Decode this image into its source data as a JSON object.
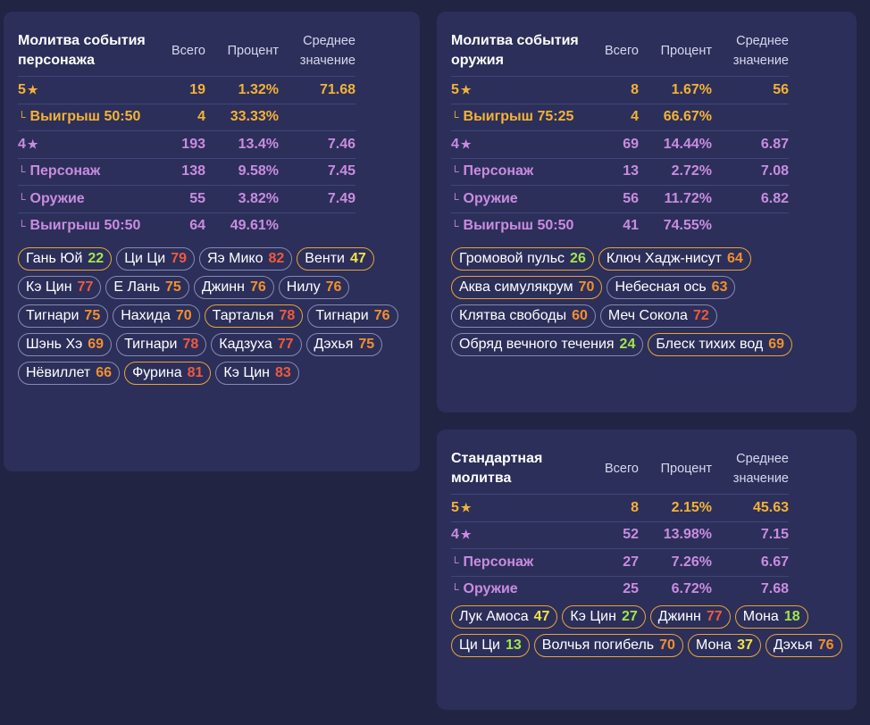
{
  "headers": {
    "total": "Всего",
    "percent": "Процент",
    "avg_line1": "Среднее",
    "avg_line2": "значение"
  },
  "character": {
    "title_line1": "Молитва события",
    "title_line2": "персонажа",
    "rows": [
      {
        "label": "5",
        "star": "★",
        "tier": "gold",
        "indent": false,
        "total": "19",
        "percent": "1.32%",
        "avg": "71.68"
      },
      {
        "label": "Выигрыш 50:50",
        "tier": "gold",
        "indent": true,
        "total": "4",
        "percent": "33.33%",
        "avg": ""
      },
      {
        "label": "4",
        "star": "★",
        "tier": "purple",
        "indent": false,
        "total": "193",
        "percent": "13.4%",
        "avg": "7.46"
      },
      {
        "label": "Персонаж",
        "tier": "purple",
        "indent": true,
        "total": "138",
        "percent": "9.58%",
        "avg": "7.45"
      },
      {
        "label": "Оружие",
        "tier": "purple",
        "indent": true,
        "total": "55",
        "percent": "3.82%",
        "avg": "7.49"
      },
      {
        "label": "Выигрыш 50:50",
        "tier": "purple",
        "indent": true,
        "total": "64",
        "percent": "49.61%",
        "avg": ""
      }
    ],
    "chips": [
      {
        "name": "Гань Юй",
        "count": "22",
        "color": "green",
        "highlight": true
      },
      {
        "name": "Ци Ци",
        "count": "79",
        "color": "red",
        "highlight": false
      },
      {
        "name": "Яэ Мико",
        "count": "82",
        "color": "red",
        "highlight": false
      },
      {
        "name": "Венти",
        "count": "47",
        "color": "yellow",
        "highlight": true
      },
      {
        "name": "Кэ Цин",
        "count": "77",
        "color": "red",
        "highlight": false
      },
      {
        "name": "Е Лань",
        "count": "75",
        "color": "orange",
        "highlight": false
      },
      {
        "name": "Джинн",
        "count": "76",
        "color": "orange",
        "highlight": false
      },
      {
        "name": "Нилу",
        "count": "76",
        "color": "orange",
        "highlight": false
      },
      {
        "name": "Тигнари",
        "count": "75",
        "color": "orange",
        "highlight": false
      },
      {
        "name": "Нахида",
        "count": "70",
        "color": "orange",
        "highlight": false
      },
      {
        "name": "Тарталья",
        "count": "78",
        "color": "red",
        "highlight": true
      },
      {
        "name": "Тигнари",
        "count": "76",
        "color": "orange",
        "highlight": false
      },
      {
        "name": "Шэнь Хэ",
        "count": "69",
        "color": "orange",
        "highlight": false
      },
      {
        "name": "Тигнари",
        "count": "78",
        "color": "red",
        "highlight": false
      },
      {
        "name": "Кадзуха",
        "count": "77",
        "color": "red",
        "highlight": false
      },
      {
        "name": "Дэхья",
        "count": "75",
        "color": "orange",
        "highlight": false
      },
      {
        "name": "Нёвиллет",
        "count": "66",
        "color": "orange",
        "highlight": false
      },
      {
        "name": "Фурина",
        "count": "81",
        "color": "red",
        "highlight": true
      },
      {
        "name": "Кэ Цин",
        "count": "83",
        "color": "red",
        "highlight": false
      }
    ]
  },
  "weapon": {
    "title_line1": "Молитва события",
    "title_line2": "оружия",
    "rows": [
      {
        "label": "5",
        "star": "★",
        "tier": "gold",
        "indent": false,
        "total": "8",
        "percent": "1.67%",
        "avg": "56"
      },
      {
        "label": "Выигрыш 75:25",
        "tier": "gold",
        "indent": true,
        "total": "4",
        "percent": "66.67%",
        "avg": ""
      },
      {
        "label": "4",
        "star": "★",
        "tier": "purple",
        "indent": false,
        "total": "69",
        "percent": "14.44%",
        "avg": "6.87"
      },
      {
        "label": "Персонаж",
        "tier": "purple",
        "indent": true,
        "total": "13",
        "percent": "2.72%",
        "avg": "7.08"
      },
      {
        "label": "Оружие",
        "tier": "purple",
        "indent": true,
        "total": "56",
        "percent": "11.72%",
        "avg": "6.82"
      },
      {
        "label": "Выигрыш 50:50",
        "tier": "purple",
        "indent": true,
        "total": "41",
        "percent": "74.55%",
        "avg": ""
      }
    ],
    "chips": [
      {
        "name": "Громовой пульс",
        "count": "26",
        "color": "green",
        "highlight": true
      },
      {
        "name": "Ключ Хадж-нисут",
        "count": "64",
        "color": "orange",
        "highlight": true
      },
      {
        "name": "Аква симулякрум",
        "count": "70",
        "color": "orange",
        "highlight": true
      },
      {
        "name": "Небесная ось",
        "count": "63",
        "color": "orange",
        "highlight": false
      },
      {
        "name": "Клятва свободы",
        "count": "60",
        "color": "orange",
        "highlight": false
      },
      {
        "name": "Меч Сокола",
        "count": "72",
        "color": "red",
        "highlight": false
      },
      {
        "name": "Обряд вечного течения",
        "count": "24",
        "color": "green",
        "highlight": false
      },
      {
        "name": "Блеск тихих вод",
        "count": "69",
        "color": "orange",
        "highlight": true
      }
    ]
  },
  "standard": {
    "title_line1": "Стандартная молитва",
    "title_line2": "",
    "rows": [
      {
        "label": "5",
        "star": "★",
        "tier": "gold",
        "indent": false,
        "total": "8",
        "percent": "2.15%",
        "avg": "45.63"
      },
      {
        "label": "4",
        "star": "★",
        "tier": "purple",
        "indent": false,
        "total": "52",
        "percent": "13.98%",
        "avg": "7.15"
      },
      {
        "label": "Персонаж",
        "tier": "purple",
        "indent": true,
        "total": "27",
        "percent": "7.26%",
        "avg": "6.67"
      },
      {
        "label": "Оружие",
        "tier": "purple",
        "indent": true,
        "total": "25",
        "percent": "6.72%",
        "avg": "7.68"
      }
    ],
    "chips": [
      {
        "name": "Лук Амоса",
        "count": "47",
        "color": "yellow",
        "highlight": true
      },
      {
        "name": "Кэ Цин",
        "count": "27",
        "color": "green",
        "highlight": true
      },
      {
        "name": "Джинн",
        "count": "77",
        "color": "red",
        "highlight": true
      },
      {
        "name": "Мона",
        "count": "18",
        "color": "green",
        "highlight": true
      },
      {
        "name": "Ци Ци",
        "count": "13",
        "color": "green",
        "highlight": true
      },
      {
        "name": "Волчья погибель",
        "count": "70",
        "color": "orange",
        "highlight": true
      },
      {
        "name": "Мона",
        "count": "37",
        "color": "yellow",
        "highlight": true
      },
      {
        "name": "Дэхья",
        "count": "76",
        "color": "orange",
        "highlight": true
      }
    ]
  },
  "colors": {
    "gold": "#f3b238",
    "purple": "#c98ce0",
    "green": "#a3e44d",
    "yellow": "#f2e347",
    "orange": "#f1902f",
    "red": "#ef5a3d",
    "card": "#2c2f59",
    "background": "#212443"
  }
}
